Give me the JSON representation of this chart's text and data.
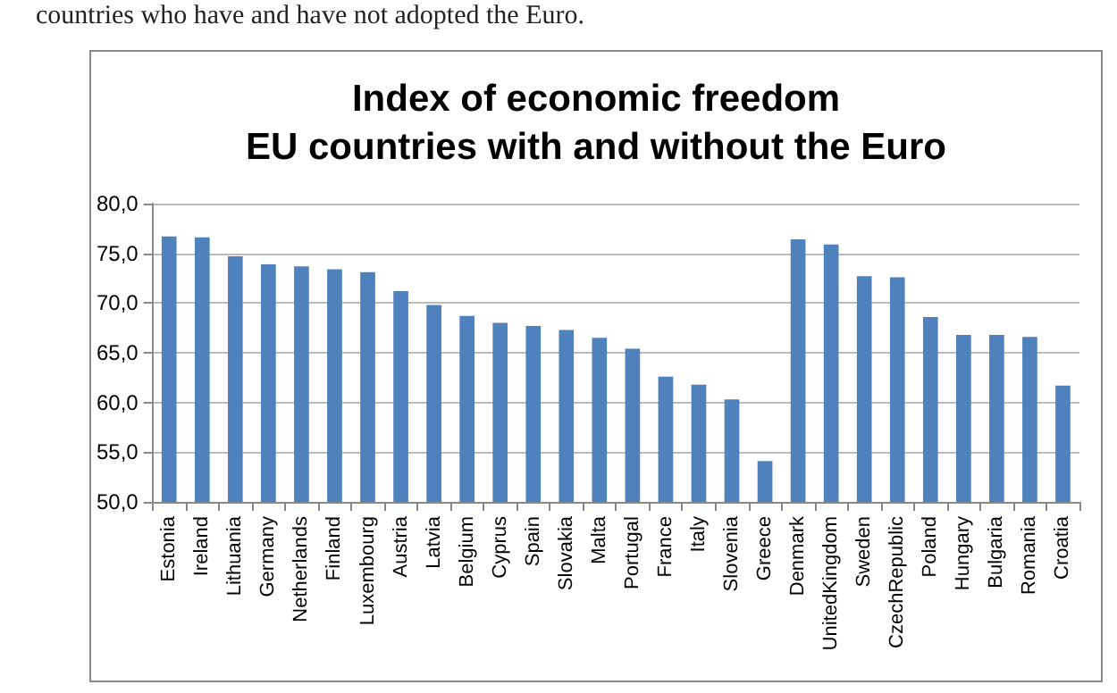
{
  "chart_data": {
    "type": "bar",
    "title": "Index of economic freedom\nEU countries with and without the Euro",
    "annotations": [
      "countries who have and have not adopted the Euro."
    ],
    "categories": [
      "Estonia",
      "Ireland",
      "Lithuania",
      "Germany",
      "Netherlands",
      "Finland",
      "Luxembourg",
      "Austria",
      "Latvia",
      "Belgium",
      "Cyprus",
      "Spain",
      "Slovakia",
      "Malta",
      "Portugal",
      "France",
      "Italy",
      "Slovenia",
      "Greece",
      "Denmark",
      "UnitedKingdom",
      "Sweden",
      "CzechRepublic",
      "Poland",
      "Hungary",
      "Bulgaria",
      "Romania",
      "Croatia"
    ],
    "values": [
      76.7,
      76.6,
      74.7,
      73.9,
      73.7,
      73.4,
      73.1,
      71.2,
      69.8,
      68.7,
      68.0,
      67.7,
      67.3,
      66.5,
      65.4,
      62.6,
      61.8,
      60.3,
      54.1,
      76.4,
      75.9,
      72.7,
      72.6,
      68.6,
      66.8,
      66.8,
      66.6,
      61.7
    ],
    "color": "#4f81bd",
    "ylim": [
      50,
      80
    ],
    "yticks": [
      {
        "value": 50,
        "label": "50,0"
      },
      {
        "value": 55,
        "label": "55,0"
      },
      {
        "value": 60,
        "label": "60,0"
      },
      {
        "value": 65,
        "label": "65,0"
      },
      {
        "value": 70,
        "label": "70,0"
      },
      {
        "value": 75,
        "label": "75,0"
      },
      {
        "value": 80,
        "label": "80,0"
      }
    ],
    "grid": "y"
  }
}
